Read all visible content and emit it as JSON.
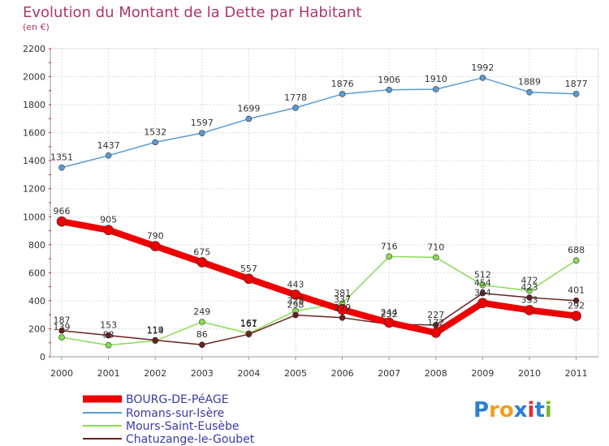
{
  "chart_data": {
    "type": "line",
    "title": "Evolution du Montant de la Dette par Habitant",
    "subtitle": "(en €)",
    "x": [
      "2000",
      "2001",
      "2002",
      "2003",
      "2004",
      "2005",
      "2006",
      "2007",
      "2008",
      "2009",
      "2010",
      "2011"
    ],
    "ylim": [
      0,
      2200
    ],
    "yticks": [
      0,
      200,
      400,
      600,
      800,
      1000,
      1200,
      1400,
      1600,
      1800,
      2000,
      2200
    ],
    "grid": true,
    "legend_position": "bottom-left",
    "series": [
      {
        "name": "BOURG-DE-PéAGE",
        "color": "#ee0000",
        "values": [
          966,
          905,
          790,
          675,
          557,
          443,
          337,
          244,
          172,
          384,
          333,
          292
        ],
        "labels": [
          "966",
          "905",
          "790",
          "675",
          "557",
          "443",
          "337",
          "244",
          "172",
          "384",
          "333",
          "292"
        ]
      },
      {
        "name": "Romans-sur-Isère",
        "color": "#5b9bd5",
        "values": [
          1351,
          1437,
          1532,
          1597,
          1699,
          1778,
          1876,
          1906,
          1910,
          1992,
          1889,
          1877
        ],
        "labels": [
          "1351",
          "1437",
          "1532",
          "1597",
          "1699",
          "1778",
          "1876",
          "1906",
          "1910",
          "1992",
          "1889",
          "1877"
        ]
      },
      {
        "name": "Mours-Saint-Eusèbe",
        "color": "#88dd55",
        "values": [
          139,
          83,
          114,
          249,
          167,
          328,
          381,
          716,
          710,
          512,
          472,
          688
        ],
        "labels": [
          "139",
          "83",
          "114",
          "249",
          "167",
          "328",
          "381",
          "716",
          "710",
          "512",
          "472",
          "688"
        ]
      },
      {
        "name": "Chatuzange-le-Goubet",
        "color": "#6b1f1f",
        "values": [
          187,
          153,
          119,
          86,
          161,
          298,
          279,
          232,
          227,
          454,
          423,
          401
        ],
        "labels": [
          "187",
          "153",
          "119",
          "86",
          "161",
          "298",
          "279",
          "232",
          "227",
          "454",
          "423",
          "401"
        ]
      }
    ]
  },
  "logo": {
    "letters": [
      "P",
      "r",
      "o",
      "x",
      "i",
      "t",
      "i"
    ],
    "colors": [
      "#2a7fd4",
      "#f0a020",
      "#f0a020",
      "#2a7fd4",
      "#e03030",
      "#2a7fd4",
      "#7ab830"
    ]
  }
}
